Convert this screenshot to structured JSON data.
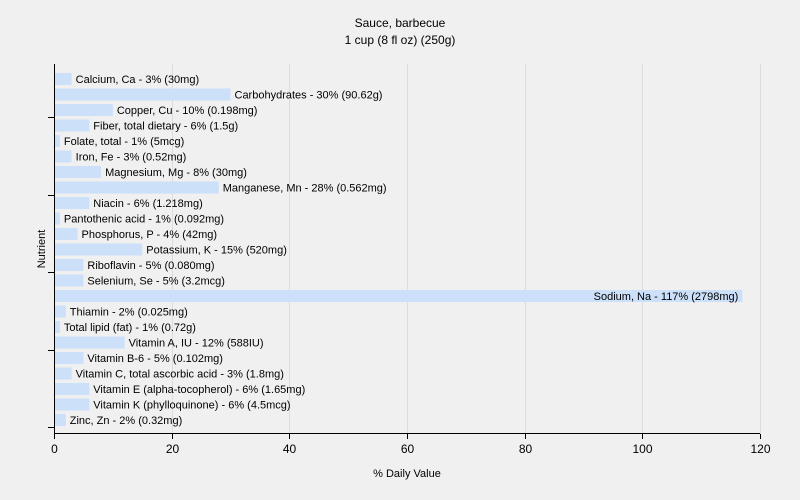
{
  "chart_data": {
    "type": "bar",
    "orientation": "horizontal",
    "title": "Sauce, barbecue",
    "subtitle": "1 cup (8 fl oz) (250g)",
    "xlabel": "% Daily Value",
    "ylabel": "Nutrient",
    "xlim": [
      0,
      120
    ],
    "xticks": [
      0,
      20,
      40,
      60,
      80,
      100,
      120
    ],
    "grid": true,
    "bar_color": "#cce0fa",
    "categories": [
      "Calcium, Ca",
      "Carbohydrates",
      "Copper, Cu",
      "Fiber, total dietary",
      "Folate, total",
      "Iron, Fe",
      "Magnesium, Mg",
      "Manganese, Mn",
      "Niacin",
      "Pantothenic acid",
      "Phosphorus, P",
      "Potassium, K",
      "Riboflavin",
      "Selenium, Se",
      "Sodium, Na",
      "Thiamin",
      "Total lipid (fat)",
      "Vitamin A, IU",
      "Vitamin B-6",
      "Vitamin C, total ascorbic acid",
      "Vitamin E (alpha-tocopherol)",
      "Vitamin K (phylloquinone)",
      "Zinc, Zn"
    ],
    "values": [
      3,
      30,
      10,
      6,
      1,
      3,
      8,
      28,
      6,
      1,
      4,
      15,
      5,
      5,
      117,
      2,
      1,
      12,
      5,
      3,
      6,
      6,
      2
    ],
    "labels": [
      "Calcium, Ca - 3% (30mg)",
      "Carbohydrates - 30% (90.62g)",
      "Copper, Cu - 10% (0.198mg)",
      "Fiber, total dietary - 6% (1.5g)",
      "Folate, total - 1% (5mcg)",
      "Iron, Fe - 3% (0.52mg)",
      "Magnesium, Mg - 8% (30mg)",
      "Manganese, Mn - 28% (0.562mg)",
      "Niacin - 6% (1.218mg)",
      "Pantothenic acid - 1% (0.092mg)",
      "Phosphorus, P - 4% (42mg)",
      "Potassium, K - 15% (520mg)",
      "Riboflavin - 5% (0.080mg)",
      "Selenium, Se - 5% (3.2mcg)",
      "Sodium, Na - 117% (2798mg)",
      "Thiamin - 2% (0.025mg)",
      "Total lipid (fat) - 1% (0.72g)",
      "Vitamin A, IU - 12% (588IU)",
      "Vitamin B-6 - 5% (0.102mg)",
      "Vitamin C, total ascorbic acid - 3% (1.8mg)",
      "Vitamin E (alpha-tocopherol) - 6% (1.65mg)",
      "Vitamin K (phylloquinone) - 6% (4.5mcg)",
      "Zinc, Zn - 2% (0.32mg)"
    ]
  }
}
